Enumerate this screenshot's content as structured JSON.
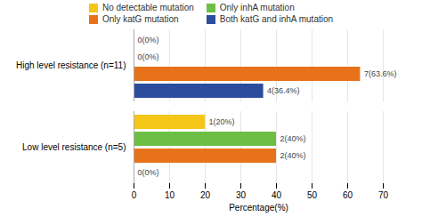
{
  "chart_data": {
    "type": "bar",
    "orientation": "horizontal",
    "categories": [
      "High level resistance (n=11)",
      "Low level resistance (n=5)"
    ],
    "series": [
      {
        "name": "No detectable mutation",
        "color": "#F5C518",
        "values": [
          0,
          20
        ],
        "value_labels": [
          "0(0%)",
          "1(20%)"
        ]
      },
      {
        "name": "Only inhA mutation",
        "color": "#6CBF44",
        "values": [
          0,
          40
        ],
        "value_labels": [
          "0(0%)",
          "2(40%)"
        ]
      },
      {
        "name": "Only katG mutation",
        "color": "#E8721A",
        "values": [
          63.6,
          40
        ],
        "value_labels": [
          "7(63.6%)",
          "2(40%)"
        ]
      },
      {
        "name": "Both katG and inhA mutation",
        "color": "#2B4D9C",
        "values": [
          36.4,
          0
        ],
        "value_labels": [
          "4(36.4%)",
          "0(0%)"
        ]
      }
    ],
    "xlabel": "Percentage(%)",
    "xlim": [
      0,
      70
    ],
    "xticks": [
      0,
      10,
      20,
      30,
      40,
      50,
      60,
      70
    ],
    "grid": true,
    "legend": "top",
    "data_labels": true
  }
}
